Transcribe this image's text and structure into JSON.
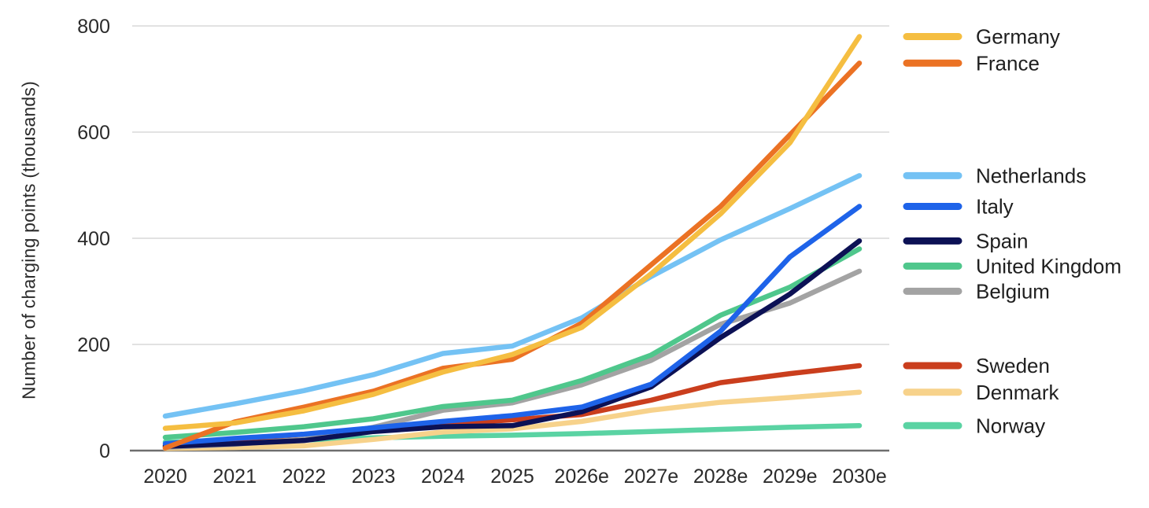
{
  "chart_data": {
    "type": "line",
    "title": "",
    "ylabel": "Number of charging points (thousands)",
    "xlabel": "",
    "categories": [
      "2020",
      "2021",
      "2022",
      "2023",
      "2024",
      "2025",
      "2026e",
      "2027e",
      "2028e",
      "2029e",
      "2030e"
    ],
    "ylim": [
      0,
      800
    ],
    "yticks": [
      0,
      200,
      400,
      600,
      800
    ],
    "grid": "horizontal-only",
    "legend_position": "right-of-plot, aligned to line endpoints, grouped",
    "colors": {
      "grid_line": "#e2e2e2",
      "axis_line": "#6e6e6e",
      "tick_text": "#2b2b2b",
      "legend_text": "#1f1f1f",
      "background": "#ffffff"
    },
    "series": [
      {
        "name": "Germany",
        "color": "#F5BE41",
        "values": [
          42,
          52,
          75,
          106,
          148,
          181,
          232,
          333,
          446,
          580,
          780
        ]
      },
      {
        "name": "France",
        "color": "#EB7224",
        "values": [
          5,
          54,
          82,
          112,
          155,
          172,
          240,
          350,
          460,
          595,
          730
        ]
      },
      {
        "name": "Netherlands",
        "color": "#74C2F4",
        "values": [
          65,
          88,
          113,
          143,
          183,
          197,
          250,
          328,
          397,
          456,
          518
        ]
      },
      {
        "name": "Italy",
        "color": "#1E63E9",
        "values": [
          13,
          23,
          31,
          43,
          55,
          66,
          82,
          125,
          225,
          365,
          460
        ]
      },
      {
        "name": "Spain",
        "color": "#0C1155",
        "values": [
          8,
          13,
          19,
          36,
          45,
          47,
          73,
          120,
          213,
          295,
          395
        ]
      },
      {
        "name": "United Kingdom",
        "color": "#4FC78C",
        "values": [
          25,
          34,
          45,
          60,
          83,
          95,
          132,
          180,
          255,
          308,
          380
        ]
      },
      {
        "name": "Belgium",
        "color": "#A3A3A3",
        "values": [
          6,
          12,
          21,
          44,
          76,
          90,
          124,
          170,
          238,
          278,
          338
        ]
      },
      {
        "name": "Sweden",
        "color": "#CA3E1D",
        "values": [
          10,
          14,
          21,
          39,
          50,
          58,
          68,
          95,
          128,
          145,
          160
        ]
      },
      {
        "name": "Denmark",
        "color": "#F7D28B",
        "values": [
          4,
          6,
          9,
          21,
          35,
          41,
          55,
          76,
          91,
          100,
          110
        ]
      },
      {
        "name": "Norway",
        "color": "#5AD3A3",
        "values": [
          16,
          18,
          20,
          24,
          27,
          29,
          32,
          36,
          40,
          44,
          47
        ]
      }
    ]
  }
}
